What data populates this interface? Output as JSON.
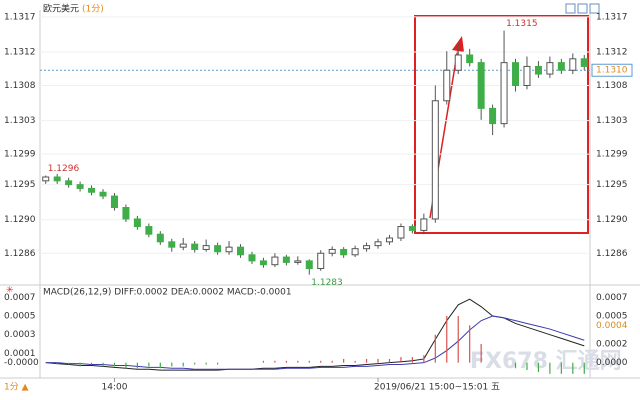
{
  "chart_data": [
    {
      "type": "candlestick",
      "title": "欧元美元",
      "subtitle": "(1分)",
      "footer_label": "1分 ▲",
      "cursor_time": "2019/06/21 15:00~15:01 五",
      "categories": [
        null,
        null,
        null,
        null,
        null,
        null,
        "14:00",
        null,
        null,
        null,
        null,
        null,
        null,
        null,
        null,
        null,
        null,
        null,
        null,
        null,
        null,
        null,
        null,
        null,
        null,
        null,
        null,
        null,
        null,
        null,
        null,
        null,
        null,
        null,
        null,
        null,
        null,
        null,
        null,
        null,
        null,
        null,
        null,
        null,
        null,
        null,
        null,
        null
      ],
      "open": [
        1.12955,
        1.1296,
        1.12955,
        1.1295,
        1.12945,
        1.1294,
        1.12935,
        1.1292,
        1.12905,
        1.12895,
        1.12885,
        1.12875,
        1.12868,
        1.12872,
        1.12865,
        1.1287,
        1.12862,
        1.12868,
        1.12858,
        1.1285,
        1.12845,
        1.12855,
        1.12848,
        1.1285,
        1.1284,
        1.1286,
        1.12865,
        1.12858,
        1.12866,
        1.1287,
        1.12875,
        1.1288,
        1.12895,
        1.1289,
        1.12905,
        1.1306,
        1.131,
        1.1312,
        1.1311,
        1.1305,
        1.1303,
        1.1311,
        1.1308,
        1.13105,
        1.13095,
        1.1311,
        1.131,
        1.13115
      ],
      "high": [
        1.12962,
        1.12964,
        1.12959,
        1.12954,
        1.12949,
        1.12944,
        1.12939,
        1.12924,
        1.12909,
        1.12899,
        1.12889,
        1.12879,
        1.1288,
        1.12876,
        1.12878,
        1.12874,
        1.12876,
        1.12872,
        1.12862,
        1.12854,
        1.1286,
        1.12858,
        1.12856,
        1.12852,
        1.12864,
        1.12869,
        1.12868,
        1.1287,
        1.12874,
        1.12879,
        1.12884,
        1.12899,
        1.12898,
        1.12912,
        1.1308,
        1.13125,
        1.13135,
        1.13128,
        1.13115,
        1.13055,
        1.13152,
        1.13115,
        1.13118,
        1.13112,
        1.13118,
        1.13115,
        1.13122,
        1.1312
      ],
      "low": [
        1.12951,
        1.12951,
        1.12946,
        1.12941,
        1.12936,
        1.12931,
        1.12916,
        1.12901,
        1.12891,
        1.12881,
        1.12871,
        1.12862,
        1.12864,
        1.12861,
        1.12862,
        1.12858,
        1.12858,
        1.12854,
        1.12846,
        1.12841,
        1.12842,
        1.12844,
        1.12845,
        1.12832,
        1.12837,
        1.12856,
        1.12854,
        1.12855,
        1.12862,
        1.12866,
        1.12871,
        1.12876,
        1.12886,
        1.12885,
        1.129,
        1.13055,
        1.13095,
        1.13105,
        1.13035,
        1.13015,
        1.13025,
        1.13072,
        1.13075,
        1.1309,
        1.1309,
        1.13095,
        1.13095,
        1.131
      ],
      "close": [
        1.1296,
        1.12955,
        1.1295,
        1.12945,
        1.1294,
        1.12935,
        1.1292,
        1.12905,
        1.12895,
        1.12885,
        1.12875,
        1.12868,
        1.12872,
        1.12865,
        1.1287,
        1.12862,
        1.12868,
        1.12858,
        1.1285,
        1.12845,
        1.12855,
        1.12848,
        1.1285,
        1.1284,
        1.1286,
        1.12865,
        1.12858,
        1.12866,
        1.1287,
        1.12875,
        1.1288,
        1.12895,
        1.1289,
        1.12905,
        1.1306,
        1.131,
        1.1312,
        1.1311,
        1.1305,
        1.1303,
        1.1311,
        1.1308,
        1.13105,
        1.13095,
        1.1311,
        1.131,
        1.13115,
        1.13105
      ],
      "up_color": "#ffffff",
      "down_color": "#3fae49",
      "annotations": [
        {
          "label": "1.1296",
          "value": 1.12962
        },
        {
          "label": "1.1283",
          "value": 1.12832
        },
        {
          "label": "1.1315",
          "value": 1.13152
        }
      ],
      "last_price": {
        "value": 1.131,
        "label": "1.1310"
      },
      "ylim": [
        1.13179,
        1.12821
      ],
      "yticks": [
        1.1317,
        {
          "value": 1.13124,
          "label": "1.1312"
        },
        1.1308,
        {
          "value": 1.13034,
          "label": "1.1303"
        },
        {
          "value": 1.1299,
          "label": "1.1299"
        },
        {
          "value": 1.1295,
          "label": "1.1295"
        },
        {
          "value": 1.12904,
          "label": "1.1290"
        },
        1.1286
      ],
      "grid": true
    },
    {
      "type": "macd",
      "title": "MACD(26,12,9) DIFF:0.0002 DEA:0.0002 MACD:-0.0001",
      "series": [
        {
          "name": "DIFF",
          "color": "#222222",
          "values": [
            0.0,
            -1e-05,
            -2e-05,
            -3e-05,
            -3e-05,
            -4e-05,
            -5e-05,
            -6e-05,
            -7e-05,
            -7e-05,
            -8e-05,
            -8e-05,
            -8e-05,
            -8e-05,
            -8e-05,
            -8e-05,
            -7e-05,
            -7e-05,
            -7e-05,
            -6e-05,
            -6e-05,
            -5e-05,
            -5e-05,
            -5e-05,
            -4e-05,
            -4e-05,
            -3e-05,
            -3e-05,
            -2e-05,
            -1e-05,
            0.0,
            1e-05,
            2e-05,
            4e-05,
            0.00025,
            0.00045,
            0.00062,
            0.00068,
            0.0006,
            0.0005,
            0.00048,
            0.00042,
            0.00038,
            0.00034,
            0.0003,
            0.00026,
            0.00022,
            0.00018
          ]
        },
        {
          "name": "DEA",
          "color": "#3b3bb0",
          "values": [
            0.0,
            0.0,
            -1e-05,
            -1e-05,
            -2e-05,
            -2e-05,
            -3e-05,
            -3e-05,
            -4e-05,
            -5e-05,
            -5e-05,
            -6e-05,
            -6e-05,
            -7e-05,
            -7e-05,
            -7e-05,
            -7e-05,
            -7e-05,
            -7e-05,
            -7e-05,
            -7e-05,
            -6e-05,
            -6e-05,
            -6e-05,
            -5e-05,
            -5e-05,
            -5e-05,
            -4e-05,
            -4e-05,
            -3e-05,
            -2e-05,
            -2e-05,
            -1e-05,
            0.0,
            5e-05,
            0.00013,
            0.00023,
            0.00035,
            0.00045,
            0.0005,
            0.00048,
            0.00045,
            0.00042,
            0.00039,
            0.00036,
            0.00032,
            0.00028,
            0.00024
          ]
        },
        {
          "name": "MACD",
          "type": "bar",
          "color": "#d9534f",
          "negative_color": "#3fae49",
          "values": [
            0.0,
            -2e-05,
            -2e-05,
            -4e-05,
            -2e-05,
            -4e-05,
            -4e-05,
            -6e-05,
            -6e-05,
            -4e-05,
            -6e-05,
            -4e-05,
            -4e-05,
            -2e-05,
            -2e-05,
            -2e-05,
            0.0,
            0.0,
            0.0,
            2e-05,
            2e-05,
            2e-05,
            2e-05,
            2e-05,
            2e-05,
            2e-05,
            4e-05,
            2e-05,
            4e-05,
            4e-05,
            4e-05,
            6e-05,
            6e-05,
            8e-05,
            0.0003,
            0.0005,
            0.0005,
            0.0004,
            0.0002,
            0.0,
            0.0,
            -6e-05,
            -8e-05,
            -0.0001,
            -0.00012,
            -0.00012,
            -0.00012,
            -0.00012
          ]
        }
      ],
      "last_value": 0.0004,
      "ylim": [
        -0.0001,
        0.0008
      ],
      "yticks": [
        0.0007,
        0.0005,
        0.0003,
        0.0001,
        {
          "value": 0,
          "label": "-0.0000"
        }
      ],
      "y2lim": [
        -0.0001,
        0.0008
      ],
      "y2ticks": [
        0.0007,
        0.0005,
        0.0002,
        {
          "value": 0,
          "label": "0.0000"
        }
      ]
    }
  ],
  "watermark": "FX678 汇通网"
}
